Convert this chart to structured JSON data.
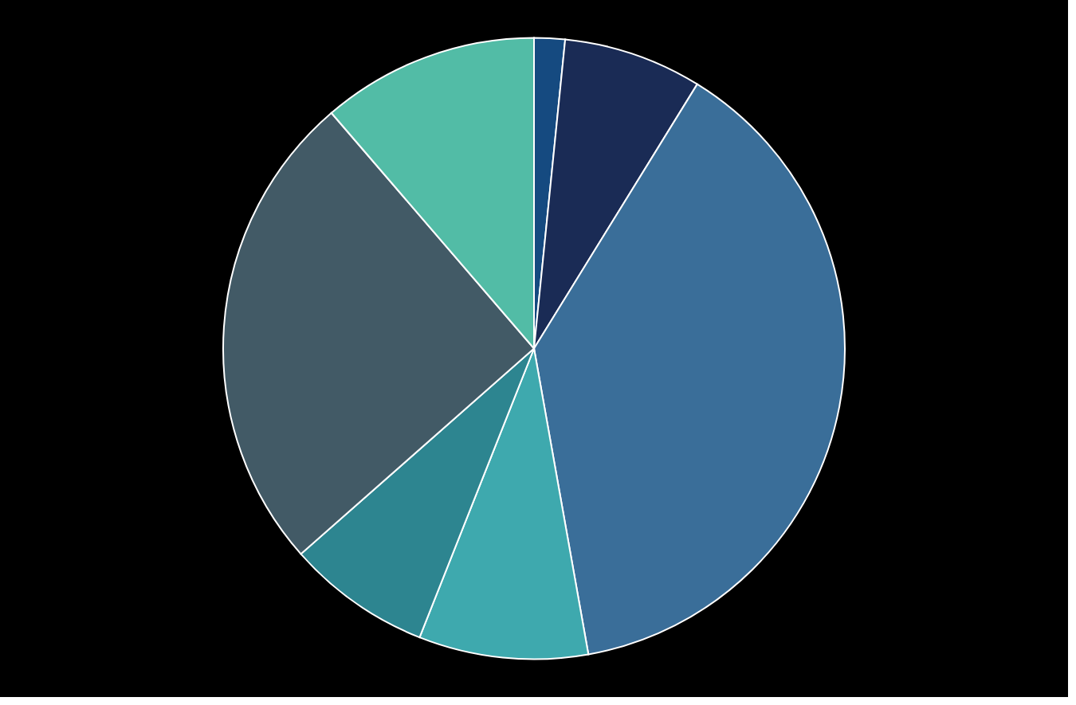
{
  "chart_data": {
    "type": "pie",
    "categories": [
      null,
      null,
      null,
      null,
      null,
      null,
      null
    ],
    "values": [
      1.6,
      7.2,
      38.4,
      8.8,
      7.5,
      25.2,
      11.3
    ],
    "colors": [
      "#154a80",
      "#1a2b55",
      "#3a6e99",
      "#3ea9ae",
      "#2d8590",
      "#425a66",
      "#52bca6"
    ]
  }
}
